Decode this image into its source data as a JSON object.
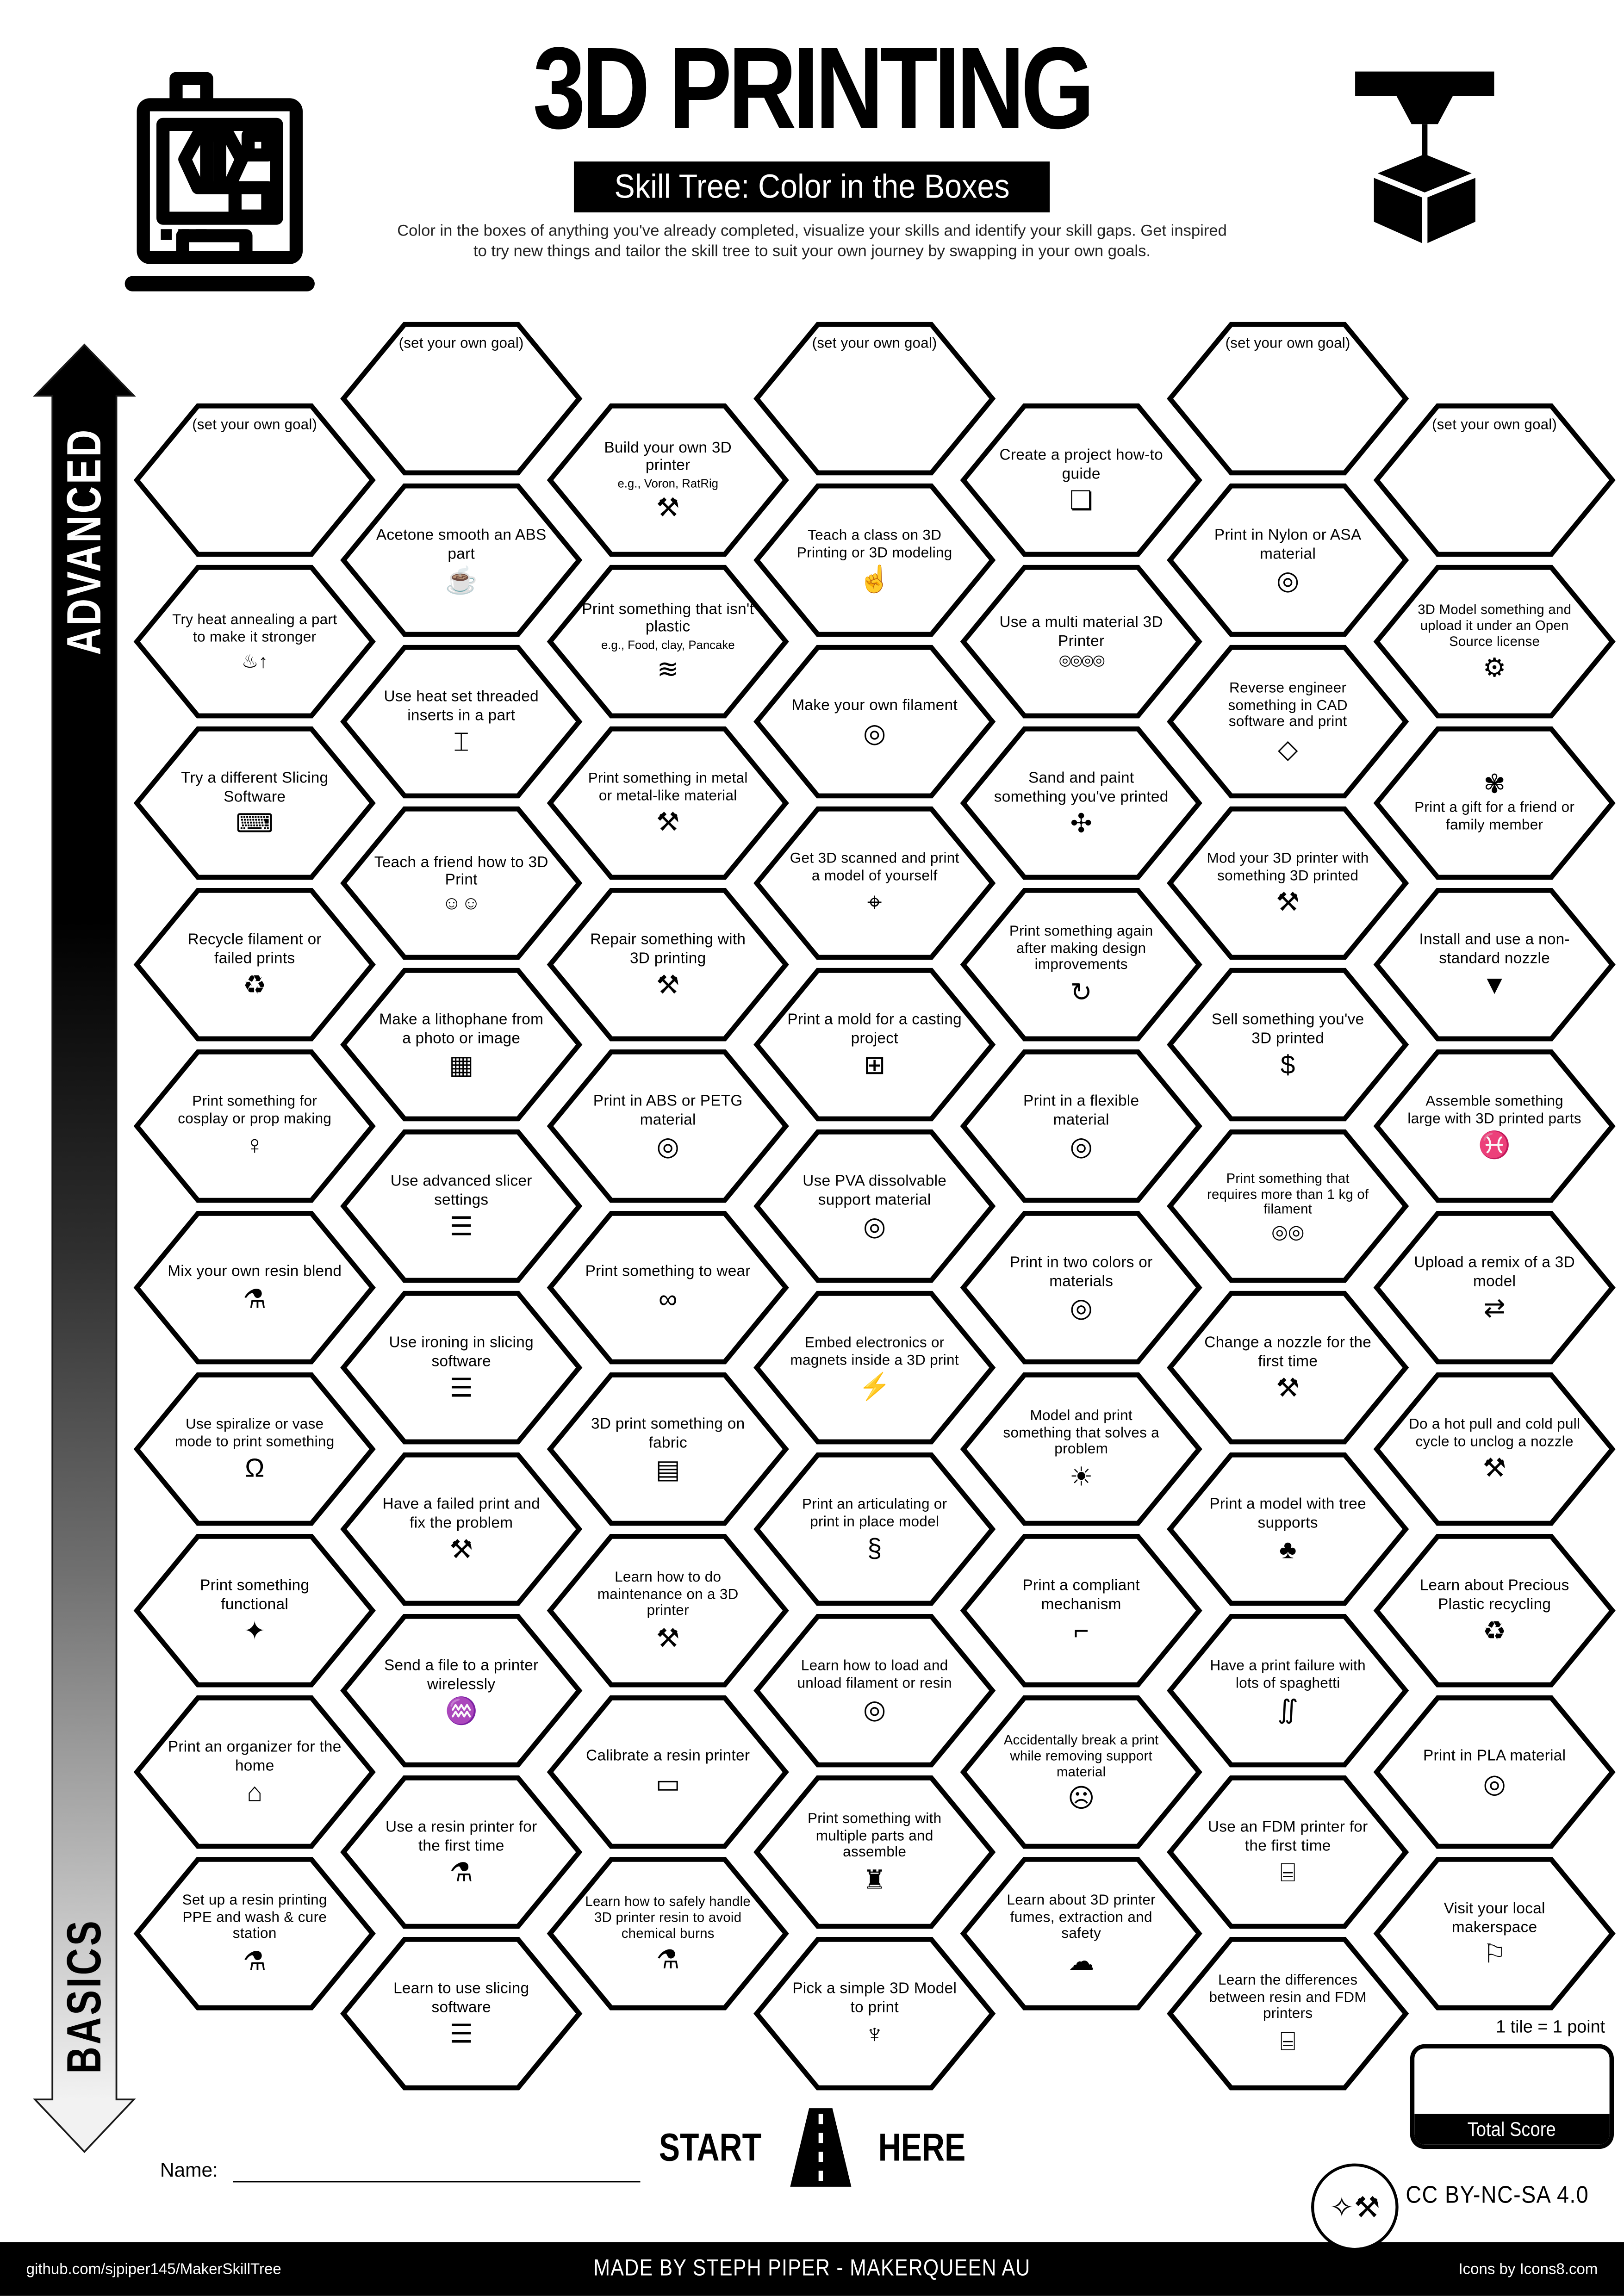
{
  "header": {
    "title": "3D PRINTING",
    "badge": "Skill Tree: Color in the Boxes",
    "subtitle1": "Color in the boxes of anything you've already completed, visualize your skills and identify your skill gaps.  Get inspired",
    "subtitle2": "to try new things and tailor the skill tree to suit your own journey by swapping in your own goals."
  },
  "axis": {
    "top_label": "ADVANCED",
    "bottom_label": "BASICS"
  },
  "goal_label": "(set your own goal)",
  "start_here": {
    "left": "START",
    "right": "HERE"
  },
  "name_label": "Name:",
  "scoring": {
    "tile_note": "1 tile = 1 point",
    "total_label": "Total Score"
  },
  "license_label": "CC BY-NC-SA 4.0",
  "footer": {
    "left": "github.com/sjpiper145/MakerSkillTree",
    "center": "MADE BY STEPH PIPER  -  MAKERQUEEN AU",
    "right": "Icons by Icons8.com"
  },
  "colors": {
    "ink": "#000000",
    "paper": "#ffffff"
  },
  "hexes": [
    {
      "c": 1,
      "r": 1,
      "goal": true
    },
    {
      "c": 1,
      "r": 2,
      "label": "Try heat annealing a part to make it stronger",
      "icon": "thermometer-up-icon",
      "glyph": "♨↑"
    },
    {
      "c": 1,
      "r": 3,
      "label": "Try a different Slicing Software",
      "icon": "laptop-gear-icon",
      "glyph": "⌨"
    },
    {
      "c": 1,
      "r": 4,
      "label": "Recycle filament or failed prints",
      "icon": "recycle-icon",
      "glyph": "♻"
    },
    {
      "c": 1,
      "r": 5,
      "label": "Print something for cosplay or prop making",
      "icon": "dress-form-icon",
      "glyph": "♀"
    },
    {
      "c": 1,
      "r": 6,
      "label": "Mix your own resin blend",
      "icon": "resin-drop-icon",
      "glyph": "⚗"
    },
    {
      "c": 1,
      "r": 7,
      "label": "Use spiralize or vase mode to print something",
      "icon": "vase-icon",
      "glyph": "Ω"
    },
    {
      "c": 1,
      "r": 8,
      "label": "Print something functional",
      "icon": "desk-lamp-icon",
      "glyph": "✦"
    },
    {
      "c": 1,
      "r": 9,
      "label": "Print an organizer for the home",
      "icon": "home-organizer-icon",
      "glyph": "⌂"
    },
    {
      "c": 1,
      "r": 10,
      "label": "Set up a resin printing PPE and wash & cure station",
      "icon": "resin-drop-icon",
      "glyph": "⚗"
    },
    {
      "c": 2,
      "r": 1,
      "goal": true
    },
    {
      "c": 2,
      "r": 2,
      "label": "Acetone smooth an ABS part",
      "icon": "acetone-pot-icon",
      "glyph": "☕"
    },
    {
      "c": 2,
      "r": 3,
      "label": "Use heat set threaded inserts in a part",
      "icon": "threaded-insert-icon",
      "glyph": "⌶"
    },
    {
      "c": 2,
      "r": 4,
      "label": "Teach a friend how to 3D Print",
      "icon": "two-people-icon",
      "glyph": "☺☺"
    },
    {
      "c": 2,
      "r": 5,
      "label": "Make a lithophane from a photo or image",
      "icon": "photo-icon",
      "glyph": "▦"
    },
    {
      "c": 2,
      "r": 6,
      "label": "Use advanced slicer settings",
      "icon": "sliced-model-icon",
      "glyph": "☰"
    },
    {
      "c": 2,
      "r": 7,
      "label": "Use ironing in slicing software",
      "icon": "sliced-model-icon",
      "glyph": "☰"
    },
    {
      "c": 2,
      "r": 8,
      "label": "Have a failed print and fix the problem",
      "icon": "tools-icon",
      "glyph": "⚒"
    },
    {
      "c": 2,
      "r": 9,
      "label": "Send a file to a printer wirelessly",
      "icon": "wifi-icon",
      "glyph": "♒"
    },
    {
      "c": 2,
      "r": 10,
      "label": "Use a resin printer for the first time",
      "icon": "resin-drop-icon",
      "glyph": "⚗"
    },
    {
      "c": 2,
      "r": 11,
      "label": "Learn to use slicing software",
      "icon": "sliced-model-icon",
      "glyph": "☰"
    },
    {
      "c": 3,
      "r": 1,
      "label": "Build your own 3D printer",
      "sub": "e.g., Voron, RatRig",
      "icon": "tools-icon",
      "glyph": "⚒"
    },
    {
      "c": 3,
      "r": 2,
      "label": "Print something that isn't plastic",
      "sub": "e.g., Food, clay, Pancake",
      "icon": "pancake-icon",
      "glyph": "≋"
    },
    {
      "c": 3,
      "r": 3,
      "label": "Print something in metal or metal-like material",
      "icon": "anvil-icon",
      "glyph": "⚒"
    },
    {
      "c": 3,
      "r": 4,
      "label": "Repair something with 3D printing",
      "icon": "tools-icon",
      "glyph": "⚒"
    },
    {
      "c": 3,
      "r": 5,
      "label": "Print in ABS or PETG material",
      "icon": "filament-spool-icon",
      "glyph": "◎"
    },
    {
      "c": 3,
      "r": 6,
      "label": "Print something to wear",
      "icon": "sunglasses-icon",
      "glyph": "∞"
    },
    {
      "c": 3,
      "r": 7,
      "label": "3D print something on fabric",
      "icon": "fabric-icon",
      "glyph": "▤"
    },
    {
      "c": 3,
      "r": 8,
      "label": "Learn how to do maintenance on a 3D printer",
      "icon": "tools-icon",
      "glyph": "⚒"
    },
    {
      "c": 3,
      "r": 9,
      "label": "Calibrate a resin printer",
      "icon": "ruler-icon",
      "glyph": "▭"
    },
    {
      "c": 3,
      "r": 10,
      "label": "Learn how to safely handle 3D printer resin to avoid chemical burns",
      "icon": "resin-drop-icon",
      "glyph": "⚗"
    },
    {
      "c": 4,
      "r": 1,
      "goal": true
    },
    {
      "c": 4,
      "r": 2,
      "label": "Teach a class on 3D Printing or 3D modeling",
      "icon": "presenter-icon",
      "glyph": "☝"
    },
    {
      "c": 4,
      "r": 3,
      "label": "Make your own filament",
      "icon": "filament-spool-icon",
      "glyph": "◎"
    },
    {
      "c": 4,
      "r": 4,
      "label": "Get 3D scanned and print a model of yourself",
      "icon": "body-scan-icon",
      "glyph": "⌖"
    },
    {
      "c": 4,
      "r": 5,
      "label": "Print a mold for a casting project",
      "icon": "mold-icon",
      "glyph": "⊞"
    },
    {
      "c": 4,
      "r": 6,
      "label": "Use PVA dissolvable support material",
      "icon": "filament-spool-icon",
      "glyph": "◎"
    },
    {
      "c": 4,
      "r": 7,
      "label": "Embed electronics or magnets inside a 3D print",
      "icon": "electronics-icon",
      "glyph": "⚡"
    },
    {
      "c": 4,
      "r": 8,
      "label": "Print an articulating or print in place model",
      "icon": "dragon-icon",
      "glyph": "§"
    },
    {
      "c": 4,
      "r": 9,
      "label": "Learn how to load and unload filament or resin",
      "icon": "filament-spool-icon",
      "glyph": "◎"
    },
    {
      "c": 4,
      "r": 10,
      "label": "Print something with multiple parts and assemble",
      "icon": "toy-train-icon",
      "glyph": "♜"
    },
    {
      "c": 4,
      "r": 11,
      "label": "Pick a simple 3D Model to print",
      "icon": "benchy-boat-icon",
      "glyph": "♆"
    },
    {
      "c": 5,
      "r": 1,
      "label": "Create a project how-to guide",
      "icon": "guide-document-icon",
      "glyph": "❏"
    },
    {
      "c": 5,
      "r": 2,
      "label": "Use a multi material 3D Printer",
      "icon": "multi-spool-icon",
      "glyph": "◎◎◎◎"
    },
    {
      "c": 5,
      "r": 3,
      "label": "Sand and paint something you've printed",
      "icon": "paint-bucket-icon",
      "glyph": "✣"
    },
    {
      "c": 5,
      "r": 4,
      "label": "Print something again after making design improvements",
      "icon": "iterate-icon",
      "glyph": "↻"
    },
    {
      "c": 5,
      "r": 5,
      "label": "Print in a flexible material",
      "icon": "filament-spool-icon",
      "glyph": "◎"
    },
    {
      "c": 5,
      "r": 6,
      "label": "Print in two colors or materials",
      "icon": "filament-spool-icon",
      "glyph": "◎"
    },
    {
      "c": 5,
      "r": 7,
      "label": "Model and print something that solves a problem",
      "icon": "lightbulb-icon",
      "glyph": "☀"
    },
    {
      "c": 5,
      "r": 8,
      "label": "Print a compliant mechanism",
      "icon": "squirt-gun-icon",
      "glyph": "⌐"
    },
    {
      "c": 5,
      "r": 9,
      "label": "Accidentally break a print while removing support material",
      "icon": "elephant-icon",
      "glyph": "☹"
    },
    {
      "c": 5,
      "r": 10,
      "label": "Learn about 3D printer fumes, extraction and safety",
      "icon": "fume-extractor-icon",
      "glyph": "☁"
    },
    {
      "c": 6,
      "r": 1,
      "goal": true
    },
    {
      "c": 6,
      "r": 2,
      "label": "Print in Nylon or ASA material",
      "icon": "filament-spool-icon",
      "glyph": "◎"
    },
    {
      "c": 6,
      "r": 3,
      "label": "Reverse engineer something in CAD software and print",
      "icon": "cad-cube-icon",
      "glyph": "◇"
    },
    {
      "c": 6,
      "r": 4,
      "label": "Mod your 3D printer with something 3D printed",
      "icon": "tools-icon",
      "glyph": "⚒"
    },
    {
      "c": 6,
      "r": 5,
      "label": "Sell something you've 3D printed",
      "icon": "money-bag-icon",
      "glyph": "$"
    },
    {
      "c": 6,
      "r": 6,
      "label": "Print something that requires more than 1 kg of filament",
      "icon": "two-spools-icon",
      "glyph": "◎◎"
    },
    {
      "c": 6,
      "r": 7,
      "label": "Change a nozzle for the first time",
      "icon": "tools-icon",
      "glyph": "⚒"
    },
    {
      "c": 6,
      "r": 8,
      "label": "Print a model with tree supports",
      "icon": "tree-icon",
      "glyph": "♣"
    },
    {
      "c": 6,
      "r": 9,
      "label": "Have a print failure  with lots of spaghetti",
      "icon": "spaghetti-bowl-icon",
      "glyph": "∬"
    },
    {
      "c": 6,
      "r": 10,
      "label": "Use an FDM printer for the first time",
      "icon": "fdm-printer-icon",
      "glyph": "⌸"
    },
    {
      "c": 6,
      "r": 11,
      "label": "Learn the differences between resin and FDM printers",
      "icon": "fdm-printer-icon",
      "glyph": "⌸"
    },
    {
      "c": 7,
      "r": 1,
      "goal": true
    },
    {
      "c": 7,
      "r": 2,
      "label": "3D Model something and upload it under an Open Source license",
      "icon": "open-source-gear-icon",
      "glyph": "⚙"
    },
    {
      "c": 7,
      "r": 3,
      "label": "Print a gift for a friend or family member",
      "icon": "gift-bow-icon",
      "glyph": "✾",
      "pos": "top"
    },
    {
      "c": 7,
      "r": 4,
      "label": "Install and use a non-standard nozzle",
      "icon": "nozzle-icon",
      "glyph": "▼"
    },
    {
      "c": 7,
      "r": 5,
      "label": "Assemble something large with 3D printed parts",
      "icon": "whale-icon",
      "glyph": "♓"
    },
    {
      "c": 7,
      "r": 6,
      "label": "Upload a remix of a 3D model",
      "icon": "remix-arrows-icon",
      "glyph": "⇄"
    },
    {
      "c": 7,
      "r": 7,
      "label": "Do a hot pull and cold pull cycle to unclog a nozzle",
      "icon": "tools-icon",
      "glyph": "⚒"
    },
    {
      "c": 7,
      "r": 8,
      "label": "Learn about Precious Plastic recycling",
      "icon": "recycle-icon",
      "glyph": "♻"
    },
    {
      "c": 7,
      "r": 9,
      "label": "Print in PLA material",
      "icon": "filament-spool-icon",
      "glyph": "◎"
    },
    {
      "c": 7,
      "r": 10,
      "label": "Visit your local makerspace",
      "icon": "location-pin-icon",
      "glyph": "⚐"
    }
  ]
}
